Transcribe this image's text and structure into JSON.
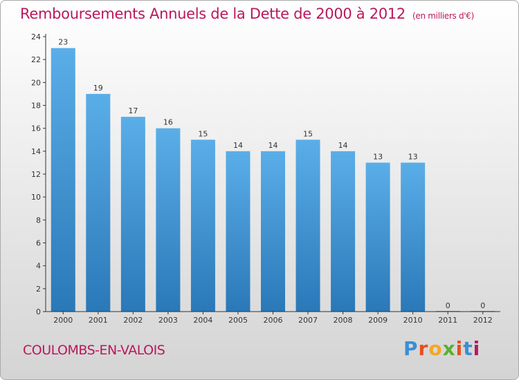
{
  "header": {
    "title": "Remboursements Annuels de la Dette de 2000 à 2012",
    "subtitle": "(en milliers d'€)"
  },
  "footer": {
    "place": "COULOMBS-EN-VALOIS",
    "logo": "Proxiti",
    "logo_colors": [
      "#3a8fd6",
      "#e94e1b",
      "#f5a623",
      "#5ab031",
      "#e94e1b",
      "#3a8fd6",
      "#b9185c"
    ]
  },
  "colors": {
    "title": "#b9185c",
    "bar_top": "#5aaee8",
    "bar_bottom": "#2a78b8",
    "axis": "#333333"
  },
  "chart_data": {
    "type": "bar",
    "title": "Remboursements Annuels de la Dette de 2000 à 2012",
    "subtitle": "(en milliers d'€)",
    "categories": [
      "2000",
      "2001",
      "2002",
      "2003",
      "2004",
      "2005",
      "2006",
      "2007",
      "2008",
      "2009",
      "2010",
      "2011",
      "2012"
    ],
    "values": [
      23,
      19,
      17,
      16,
      15,
      14,
      14,
      15,
      14,
      13,
      13,
      0,
      0
    ],
    "data_labels": [
      "23",
      "19",
      "17",
      "16",
      "15",
      "14",
      "14",
      "15",
      "14",
      "13",
      "13",
      "0",
      "0"
    ],
    "y_ticks": [
      0,
      2,
      4,
      6,
      8,
      10,
      12,
      14,
      16,
      18,
      20,
      22,
      24
    ],
    "ylim": [
      0,
      24
    ],
    "xlabel": "",
    "ylabel": "",
    "grid": false,
    "legend": "none"
  }
}
